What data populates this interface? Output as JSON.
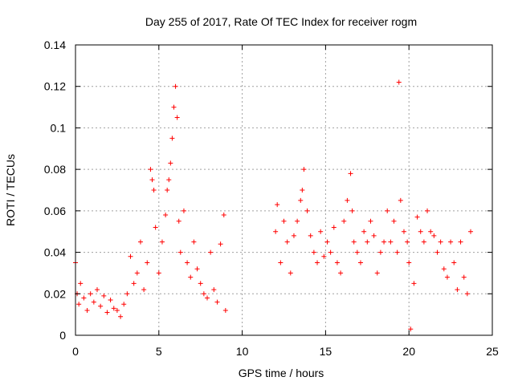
{
  "chart_data": {
    "type": "scatter",
    "title": "Day 255 of 2017, Rate Of TEC Index for receiver rogm",
    "xlabel": "GPS time / hours",
    "ylabel": "ROTI / TECUs",
    "xlim": [
      0,
      25
    ],
    "ylim": [
      0,
      0.14
    ],
    "x_ticks": [
      "0",
      "5",
      "10",
      "15",
      "20",
      "25"
    ],
    "y_ticks": [
      "0",
      "0.02",
      "0.04",
      "0.06",
      "0.08",
      "0.1",
      "0.12",
      "0.14"
    ],
    "grid": true,
    "marker": "+",
    "marker_color": "#ff0000",
    "series": [
      {
        "x": [
          0.0,
          0.1,
          0.2,
          0.3,
          0.5,
          0.7,
          0.9,
          1.1,
          1.3,
          1.5,
          1.7,
          1.9,
          2.1,
          2.3,
          2.5,
          2.7,
          2.9,
          3.1,
          3.3,
          3.5,
          3.7,
          3.9,
          4.1,
          4.3,
          4.5,
          4.6,
          4.7,
          4.8,
          5.0,
          5.2,
          5.4,
          5.5,
          5.6,
          5.7,
          5.8,
          5.9,
          6.0,
          6.1,
          6.2,
          6.3,
          6.5,
          6.7,
          6.9,
          7.1,
          7.3,
          7.5,
          7.7,
          7.9,
          8.1,
          8.3,
          8.5,
          8.7,
          8.9,
          9.0,
          12.0,
          12.1,
          12.3,
          12.5,
          12.7,
          12.9,
          13.1,
          13.3,
          13.5,
          13.6,
          13.7,
          13.9,
          14.1,
          14.3,
          14.5,
          14.7,
          14.9,
          15.1,
          15.3,
          15.5,
          15.7,
          15.9,
          16.1,
          16.3,
          16.5,
          16.6,
          16.7,
          16.9,
          17.1,
          17.3,
          17.5,
          17.7,
          17.9,
          18.1,
          18.3,
          18.5,
          18.7,
          18.9,
          19.1,
          19.3,
          19.4,
          19.5,
          19.7,
          19.9,
          20.0,
          20.1,
          20.3,
          20.5,
          20.7,
          20.9,
          21.1,
          21.3,
          21.5,
          21.7,
          21.9,
          22.1,
          22.3,
          22.5,
          22.7,
          22.9,
          23.1,
          23.3,
          23.5,
          23.7
        ],
        "y": [
          0.035,
          0.02,
          0.015,
          0.025,
          0.018,
          0.012,
          0.02,
          0.016,
          0.022,
          0.014,
          0.019,
          0.011,
          0.017,
          0.013,
          0.012,
          0.009,
          0.015,
          0.02,
          0.038,
          0.025,
          0.03,
          0.045,
          0.022,
          0.035,
          0.08,
          0.075,
          0.07,
          0.052,
          0.03,
          0.045,
          0.058,
          0.07,
          0.075,
          0.083,
          0.095,
          0.11,
          0.12,
          0.105,
          0.055,
          0.04,
          0.06,
          0.035,
          0.028,
          0.045,
          0.032,
          0.025,
          0.02,
          0.018,
          0.04,
          0.022,
          0.016,
          0.044,
          0.058,
          0.012,
          0.05,
          0.063,
          0.035,
          0.055,
          0.045,
          0.03,
          0.048,
          0.055,
          0.065,
          0.07,
          0.08,
          0.06,
          0.048,
          0.04,
          0.035,
          0.05,
          0.038,
          0.045,
          0.04,
          0.052,
          0.035,
          0.03,
          0.055,
          0.065,
          0.078,
          0.06,
          0.045,
          0.04,
          0.035,
          0.05,
          0.045,
          0.055,
          0.048,
          0.03,
          0.04,
          0.045,
          0.06,
          0.045,
          0.055,
          0.04,
          0.122,
          0.065,
          0.05,
          0.045,
          0.035,
          0.003,
          0.025,
          0.057,
          0.05,
          0.045,
          0.06,
          0.05,
          0.048,
          0.04,
          0.045,
          0.032,
          0.028,
          0.045,
          0.035,
          0.022,
          0.045,
          0.028,
          0.02,
          0.05
        ]
      }
    ]
  }
}
